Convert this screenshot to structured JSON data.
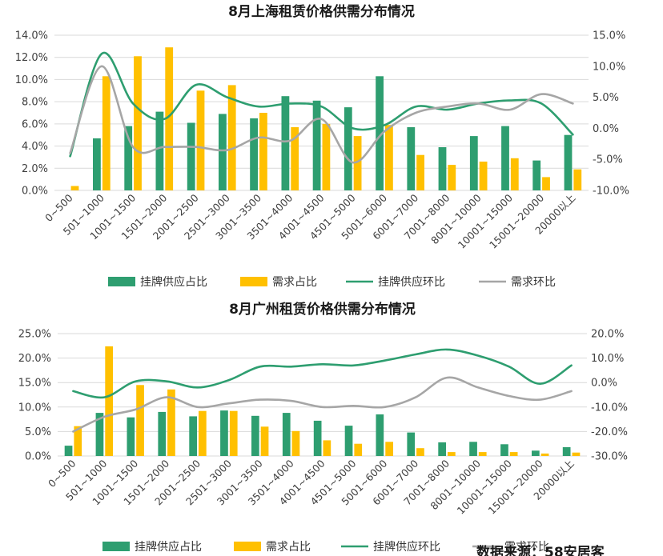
{
  "colors": {
    "supply_bar": "#2E9E70",
    "demand_bar": "#FFC000",
    "supply_line": "#2E9E70",
    "demand_line": "#A6A6A6",
    "grid": "#D9D9D9"
  },
  "legend": [
    "挂牌供应占比",
    "需求占比",
    "挂牌供应环比",
    "需求环比"
  ],
  "source_note": "数据来源：58安居客",
  "chart_data": [
    {
      "type": "bar",
      "combo": "bar+line",
      "title": "8月上海租赁价格供需分布情况",
      "categories": [
        "0~500",
        "501~1000",
        "1001~1500",
        "1501~2000",
        "2001~2500",
        "2501~3000",
        "3001~3500",
        "3501~4000",
        "4001~4500",
        "4501~5000",
        "5001~6000",
        "6001~7000",
        "7001~8000",
        "8001~10000",
        "10001~15000",
        "15001~20000",
        "20000以上"
      ],
      "left_axis": {
        "min": 0,
        "max": 14,
        "step": 2,
        "ticks": [
          "0.0%",
          "2.0%",
          "4.0%",
          "6.0%",
          "8.0%",
          "10.0%",
          "12.0%",
          "14.0%"
        ]
      },
      "right_axis": {
        "min": -10,
        "max": 15,
        "step": 5,
        "ticks": [
          "-10.0%",
          "-5.0%",
          "0.0%",
          "5.0%",
          "10.0%",
          "15.0%"
        ]
      },
      "series": [
        {
          "name": "挂牌供应占比",
          "type": "bar",
          "axis": "left",
          "values": [
            0.0,
            4.7,
            5.8,
            7.1,
            6.1,
            6.9,
            6.5,
            8.5,
            8.1,
            7.5,
            10.3,
            5.7,
            3.9,
            4.9,
            5.8,
            2.7,
            5.0
          ]
        },
        {
          "name": "需求占比",
          "type": "bar",
          "axis": "left",
          "values": [
            0.4,
            10.3,
            12.1,
            12.9,
            9.0,
            9.5,
            7.0,
            5.7,
            6.0,
            4.9,
            5.9,
            3.2,
            2.3,
            2.6,
            2.9,
            1.2,
            1.9
          ]
        },
        {
          "name": "挂牌供应环比",
          "type": "line",
          "axis": "right",
          "values": [
            -4.5,
            12.0,
            4.0,
            1.5,
            7.0,
            5.0,
            3.5,
            4.0,
            3.5,
            0.0,
            0.5,
            3.5,
            3.0,
            4.0,
            4.5,
            4.0,
            -1.0
          ]
        },
        {
          "name": "需求环比",
          "type": "line",
          "axis": "right",
          "values": [
            -4.0,
            10.0,
            -3.0,
            -3.0,
            -3.0,
            -3.5,
            -1.5,
            -2.0,
            1.5,
            -5.5,
            -0.5,
            2.5,
            3.5,
            4.0,
            3.0,
            5.5,
            4.0
          ]
        }
      ]
    },
    {
      "type": "bar",
      "combo": "bar+line",
      "title": "8月广州租赁价格供需分布情况",
      "categories": [
        "0~500",
        "501~1000",
        "1001~1500",
        "1501~2000",
        "2001~2500",
        "2501~3000",
        "3001~3500",
        "3501~4000",
        "4001~4500",
        "4501~5000",
        "5001~6000",
        "6001~7000",
        "7001~8000",
        "8001~10000",
        "10001~15000",
        "15001~20000",
        "20000以上"
      ],
      "left_axis": {
        "min": 0,
        "max": 25,
        "step": 5,
        "ticks": [
          "0.0%",
          "5.0%",
          "10.0%",
          "15.0%",
          "20.0%",
          "25.0%"
        ]
      },
      "right_axis": {
        "min": -30,
        "max": 20,
        "step": 10,
        "ticks": [
          "-30.0%",
          "-20.0%",
          "-10.0%",
          "0.0%",
          "10.0%",
          "20.0%"
        ]
      },
      "series": [
        {
          "name": "挂牌供应占比",
          "type": "bar",
          "axis": "left",
          "values": [
            2.1,
            8.8,
            7.9,
            9.0,
            8.1,
            9.3,
            8.2,
            8.8,
            7.2,
            6.2,
            8.5,
            4.8,
            2.8,
            2.9,
            2.4,
            1.1,
            1.8
          ]
        },
        {
          "name": "需求占比",
          "type": "bar",
          "axis": "left",
          "values": [
            6.1,
            22.4,
            14.5,
            13.6,
            9.2,
            9.2,
            6.0,
            5.1,
            3.2,
            2.5,
            2.9,
            1.6,
            0.8,
            0.8,
            0.8,
            0.5,
            0.7
          ]
        },
        {
          "name": "挂牌供应环比",
          "type": "line",
          "axis": "right",
          "values": [
            -3.5,
            -6.0,
            0.5,
            0.5,
            -2.0,
            1.0,
            6.5,
            6.5,
            7.5,
            7.0,
            9.0,
            11.5,
            13.5,
            11.0,
            6.5,
            -0.5,
            7.0
          ]
        },
        {
          "name": "需求环比",
          "type": "line",
          "axis": "right",
          "values": [
            -20.0,
            -14.0,
            -11.0,
            -6.0,
            -10.0,
            -8.5,
            -7.0,
            -7.5,
            -10.0,
            -9.5,
            -10.0,
            -6.0,
            2.0,
            -2.0,
            -5.5,
            -7.0,
            -3.5
          ]
        }
      ]
    }
  ]
}
